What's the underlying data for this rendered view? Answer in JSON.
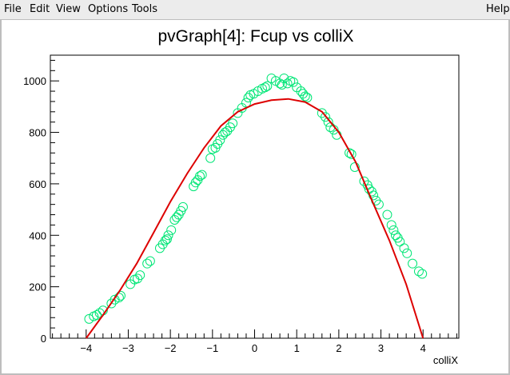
{
  "menu": {
    "file": "File",
    "edit": "Edit",
    "view": "View",
    "options": "Options",
    "tools": "Tools",
    "help": "Help"
  },
  "colors": {
    "menubar_bg": "#ececec",
    "marker": "#00e676",
    "fit_line": "#dd0000",
    "axis": "#000000"
  },
  "chart_data": {
    "type": "scatter",
    "title": "pvGraph[4]: Fcup vs colliX",
    "xlabel": "colliX",
    "ylabel": "",
    "xlim": [
      -4.85,
      4.85
    ],
    "ylim": [
      0,
      1100
    ],
    "xticks": [
      -4,
      -3,
      -2,
      -1,
      0,
      1,
      2,
      3,
      4
    ],
    "yticks": [
      0,
      200,
      400,
      600,
      800,
      1000
    ],
    "xtick_labels": [
      "−4",
      "−3",
      "−2",
      "−1",
      "0",
      "1",
      "2",
      "3",
      "4"
    ],
    "ytick_labels": [
      "0",
      "200",
      "400",
      "600",
      "800",
      "1000"
    ],
    "grid": false,
    "series": [
      {
        "marker": "open-circle",
        "color": "#00e676",
        "points": [
          [
            -3.93,
            75
          ],
          [
            -3.82,
            85
          ],
          [
            -3.75,
            90
          ],
          [
            -3.68,
            98
          ],
          [
            -3.6,
            108
          ],
          [
            -3.4,
            135
          ],
          [
            -3.32,
            150
          ],
          [
            -3.22,
            158
          ],
          [
            -3.18,
            165
          ],
          [
            -2.95,
            210
          ],
          [
            -2.85,
            228
          ],
          [
            -2.78,
            232
          ],
          [
            -2.72,
            245
          ],
          [
            -2.55,
            290
          ],
          [
            -2.48,
            300
          ],
          [
            -2.25,
            350
          ],
          [
            -2.18,
            365
          ],
          [
            -2.12,
            380
          ],
          [
            -2.08,
            385
          ],
          [
            -2.05,
            400
          ],
          [
            -1.98,
            420
          ],
          [
            -1.9,
            460
          ],
          [
            -1.85,
            470
          ],
          [
            -1.8,
            480
          ],
          [
            -1.75,
            495
          ],
          [
            -1.7,
            510
          ],
          [
            -1.45,
            590
          ],
          [
            -1.4,
            605
          ],
          [
            -1.35,
            615
          ],
          [
            -1.3,
            630
          ],
          [
            -1.25,
            635
          ],
          [
            -1.05,
            700
          ],
          [
            -1.0,
            735
          ],
          [
            -0.93,
            740
          ],
          [
            -0.88,
            755
          ],
          [
            -0.82,
            770
          ],
          [
            -0.75,
            790
          ],
          [
            -0.7,
            800
          ],
          [
            -0.65,
            805
          ],
          [
            -0.58,
            820
          ],
          [
            -0.52,
            835
          ],
          [
            -0.4,
            875
          ],
          [
            -0.3,
            895
          ],
          [
            -0.2,
            915
          ],
          [
            -0.15,
            935
          ],
          [
            -0.1,
            945
          ],
          [
            -0.02,
            950
          ],
          [
            0.08,
            960
          ],
          [
            0.18,
            970
          ],
          [
            0.25,
            975
          ],
          [
            0.3,
            980
          ],
          [
            0.4,
            1010
          ],
          [
            0.5,
            1000
          ],
          [
            0.6,
            990
          ],
          [
            0.65,
            985
          ],
          [
            0.7,
            1010
          ],
          [
            0.78,
            990
          ],
          [
            0.85,
            1000
          ],
          [
            0.92,
            995
          ],
          [
            1.0,
            975
          ],
          [
            1.1,
            960
          ],
          [
            1.15,
            950
          ],
          [
            1.2,
            940
          ],
          [
            1.25,
            935
          ],
          [
            1.6,
            875
          ],
          [
            1.68,
            860
          ],
          [
            1.75,
            840
          ],
          [
            1.8,
            820
          ],
          [
            1.88,
            810
          ],
          [
            1.95,
            790
          ],
          [
            2.25,
            720
          ],
          [
            2.3,
            715
          ],
          [
            2.38,
            665
          ],
          [
            2.6,
            610
          ],
          [
            2.68,
            595
          ],
          [
            2.72,
            580
          ],
          [
            2.78,
            570
          ],
          [
            2.82,
            555
          ],
          [
            2.88,
            535
          ],
          [
            2.95,
            520
          ],
          [
            3.15,
            480
          ],
          [
            3.25,
            440
          ],
          [
            3.3,
            420
          ],
          [
            3.35,
            400
          ],
          [
            3.4,
            390
          ],
          [
            3.45,
            375
          ],
          [
            3.55,
            350
          ],
          [
            3.62,
            330
          ],
          [
            3.75,
            290
          ],
          [
            3.9,
            260
          ],
          [
            3.98,
            250
          ]
        ]
      },
      {
        "name": "",
        "type": "line",
        "color": "#dd0000",
        "x": [
          -4.0,
          -3.6,
          -3.2,
          -2.8,
          -2.4,
          -2.0,
          -1.6,
          -1.2,
          -0.8,
          -0.4,
          0.0,
          0.4,
          0.8,
          1.2,
          1.6,
          2.0,
          2.4,
          2.8,
          3.2,
          3.6,
          4.0
        ],
        "y": [
          0,
          90,
          185,
          290,
          410,
          530,
          640,
          740,
          825,
          880,
          910,
          925,
          930,
          918,
          880,
          800,
          685,
          530,
          380,
          210,
          0
        ]
      }
    ]
  }
}
